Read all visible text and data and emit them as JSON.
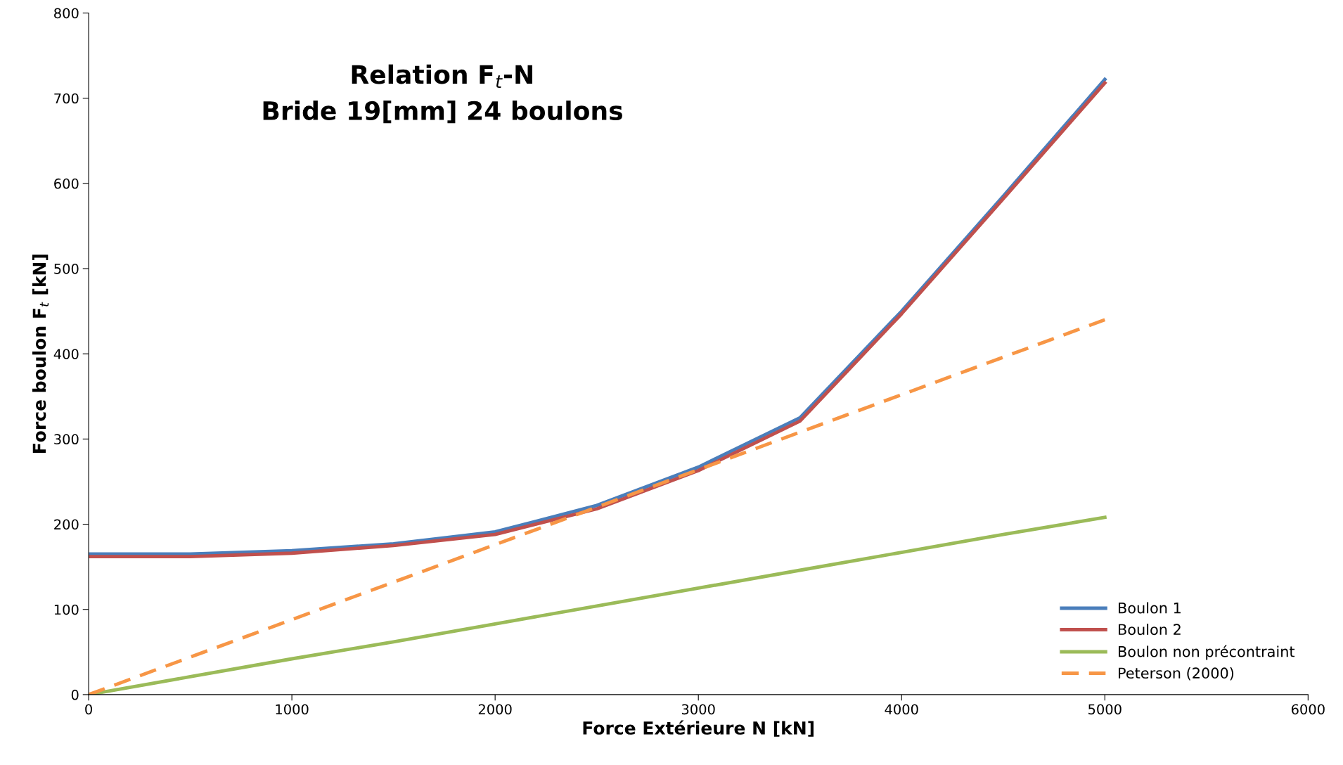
{
  "chart_data": {
    "type": "line",
    "title": "Relation F$_{t}$-N\nBride 19[mm] 24 boulons",
    "xlabel": "Force Extérieure N [kN]",
    "ylabel": "Force boulon F$_{t}$ [kN]",
    "xlim": [
      0,
      6000
    ],
    "xticks": [
      0,
      1000,
      2000,
      3000,
      4000,
      5000,
      6000
    ],
    "ylim": [
      0,
      800
    ],
    "yticks": [
      0,
      100,
      200,
      300,
      400,
      500,
      600,
      700,
      800
    ],
    "grid": false,
    "legend": "bottom right",
    "series": [
      {
        "name": "Boulon 1",
        "color": "#4a7ebb",
        "x": [
          0,
          500,
          1000,
          1500,
          2000,
          2500,
          3000,
          3500,
          4000,
          4500,
          5000
        ],
        "values": [
          165,
          165,
          169,
          177,
          191,
          222,
          267,
          325,
          450,
          585,
          722
        ]
      },
      {
        "name": "Boulon 2",
        "color": "#c0504d",
        "x": [
          0,
          500,
          1000,
          1500,
          2000,
          2500,
          3000,
          3500,
          4000,
          4500,
          5000
        ],
        "values": [
          162,
          162,
          166,
          175,
          188,
          218,
          263,
          321,
          447,
          582,
          718
        ]
      },
      {
        "name": "Boulon non précontraint",
        "color": "#9bbb59",
        "x": [
          0,
          500,
          1000,
          1500,
          2000,
          2500,
          3000,
          3500,
          4000,
          4500,
          5000
        ],
        "values": [
          0,
          21,
          42,
          62,
          83,
          104,
          125,
          146,
          167,
          188,
          208
        ]
      },
      {
        "name": "Peterson (2000)",
        "color": "#f79646",
        "line_style": "dashed",
        "x": [
          0,
          1000,
          2000,
          3000,
          4000,
          5000
        ],
        "values": [
          0,
          88,
          176,
          264,
          352,
          440
        ]
      }
    ]
  }
}
